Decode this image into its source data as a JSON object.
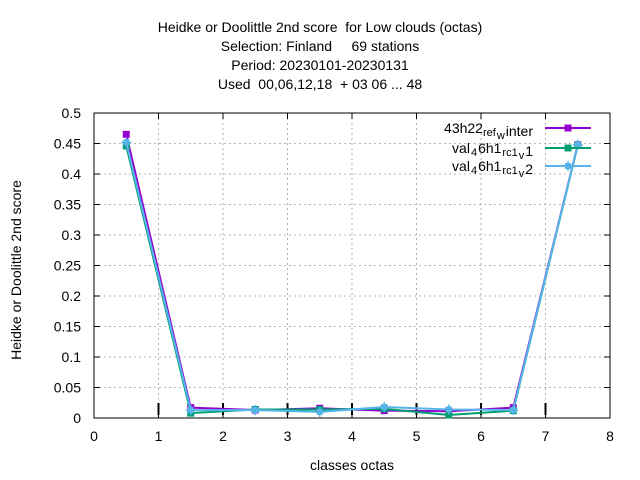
{
  "chart_data": {
    "type": "line",
    "title": [
      "Heidke or Doolittle 2nd score  for Low clouds (octas)",
      "Selection: Finland     69 stations",
      "Period: 20230101-20230131",
      "Used  00,06,12,18  + 03 06 ... 48"
    ],
    "xlabel": "classes octas",
    "ylabel": "Heidke or Doolittle 2nd score",
    "xlim": [
      0,
      8
    ],
    "ylim": [
      0,
      0.5
    ],
    "xticks": [
      "0",
      "1",
      "2",
      "3",
      "4",
      "5",
      "6",
      "7",
      "8"
    ],
    "yticks": [
      "0",
      "0.05",
      "0.1",
      "0.15",
      "0.2",
      "0.25",
      "0.3",
      "0.35",
      "0.4",
      "0.45",
      "0.5"
    ],
    "grid": true,
    "legend_position": "top-right",
    "x": [
      0.5,
      1.5,
      2.5,
      3.5,
      4.5,
      5.5,
      6.5,
      7.5
    ],
    "series": [
      {
        "name_parts": [
          "43h22",
          "ref",
          "w",
          "inter"
        ],
        "color": "#9400d3",
        "marker": "square",
        "values": [
          0.465,
          0.017,
          0.013,
          0.016,
          0.012,
          0.011,
          0.017,
          0.448
        ]
      },
      {
        "name_parts": [
          "val",
          "4",
          "6h1",
          "rc1",
          "v",
          "1"
        ],
        "color": "#009e73",
        "marker": "square",
        "values": [
          0.446,
          0.008,
          0.014,
          0.014,
          0.015,
          0.005,
          0.012,
          0.447
        ]
      },
      {
        "name_parts": [
          "val",
          "4",
          "6h1",
          "rc1",
          "v",
          "2"
        ],
        "color": "#56b4e9",
        "marker": "star",
        "values": [
          0.452,
          0.013,
          0.013,
          0.01,
          0.018,
          0.014,
          0.013,
          0.448
        ]
      }
    ],
    "black_tick_marks_x": [
      1,
      2,
      3,
      4,
      5,
      6,
      7
    ]
  }
}
